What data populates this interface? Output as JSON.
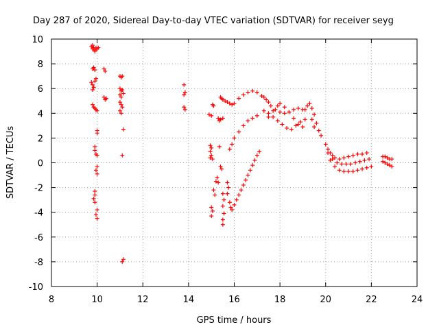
{
  "chart_data": {
    "type": "scatter",
    "title": "Day 287 of 2020, Sidereal Day-to-day VTEC variation (SDTVAR) for receiver seyg",
    "xlabel": "GPS time / hours",
    "ylabel": "SDTVAR / TECUs",
    "xlim": [
      8,
      24
    ],
    "ylim": [
      -10,
      10
    ],
    "xticks": [
      8,
      10,
      12,
      14,
      16,
      18,
      20,
      22,
      24
    ],
    "yticks": [
      -10,
      -8,
      -6,
      -4,
      -2,
      0,
      2,
      4,
      6,
      8,
      10
    ],
    "grid": true,
    "marker": "+",
    "series_color": "#ff0000",
    "points": [
      [
        9.75,
        9.4
      ],
      [
        9.8,
        9.2
      ],
      [
        9.85,
        9.3
      ],
      [
        9.9,
        9.1
      ],
      [
        9.95,
        9.3
      ],
      [
        10.0,
        9.2
      ],
      [
        10.05,
        9.3
      ],
      [
        9.8,
        9.5
      ],
      [
        9.9,
        9.0
      ],
      [
        9.8,
        7.6
      ],
      [
        9.85,
        7.7
      ],
      [
        9.9,
        7.5
      ],
      [
        9.75,
        6.5
      ],
      [
        9.8,
        6.3
      ],
      [
        9.85,
        6.1
      ],
      [
        9.9,
        6.6
      ],
      [
        9.95,
        6.8
      ],
      [
        9.8,
        5.9
      ],
      [
        9.8,
        4.7
      ],
      [
        9.85,
        4.5
      ],
      [
        9.9,
        4.4
      ],
      [
        9.95,
        4.3
      ],
      [
        10.0,
        4.2
      ],
      [
        10.0,
        2.6
      ],
      [
        10.0,
        2.4
      ],
      [
        9.9,
        1.3
      ],
      [
        9.9,
        1.0
      ],
      [
        9.95,
        0.7
      ],
      [
        10.0,
        0.6
      ],
      [
        10.0,
        -0.3
      ],
      [
        9.95,
        -0.6
      ],
      [
        10.0,
        -0.9
      ],
      [
        9.9,
        -2.3
      ],
      [
        9.9,
        -2.6
      ],
      [
        9.85,
        -2.9
      ],
      [
        9.9,
        -3.2
      ],
      [
        10.0,
        -3.8
      ],
      [
        9.95,
        -4.2
      ],
      [
        10.0,
        -4.5
      ],
      [
        10.3,
        7.6
      ],
      [
        10.35,
        7.4
      ],
      [
        10.3,
        5.3
      ],
      [
        10.35,
        5.1
      ],
      [
        10.4,
        5.2
      ],
      [
        11.0,
        7.0
      ],
      [
        11.05,
        6.9
      ],
      [
        11.1,
        7.0
      ],
      [
        11.0,
        6.0
      ],
      [
        11.05,
        5.8
      ],
      [
        11.1,
        5.9
      ],
      [
        11.15,
        5.6
      ],
      [
        11.0,
        5.5
      ],
      [
        11.05,
        5.3
      ],
      [
        11.0,
        4.9
      ],
      [
        11.05,
        4.7
      ],
      [
        11.1,
        4.5
      ],
      [
        11.0,
        4.2
      ],
      [
        11.05,
        4.0
      ],
      [
        11.15,
        2.7
      ],
      [
        11.1,
        0.6
      ],
      [
        11.15,
        -7.8
      ],
      [
        11.1,
        -8.0
      ],
      [
        13.8,
        6.3
      ],
      [
        13.85,
        5.7
      ],
      [
        13.8,
        5.5
      ],
      [
        13.8,
        4.5
      ],
      [
        13.85,
        4.3
      ],
      [
        14.9,
        3.9
      ],
      [
        15.0,
        3.8
      ],
      [
        15.05,
        4.7
      ],
      [
        15.1,
        4.6
      ],
      [
        15.3,
        3.6
      ],
      [
        15.4,
        3.5
      ],
      [
        15.5,
        3.6
      ],
      [
        15.35,
        3.4
      ],
      [
        15.4,
        5.3
      ],
      [
        15.45,
        5.2
      ],
      [
        15.5,
        5.1
      ],
      [
        15.6,
        5.0
      ],
      [
        15.7,
        4.9
      ],
      [
        15.8,
        4.8
      ],
      [
        15.9,
        4.7
      ],
      [
        14.95,
        1.4
      ],
      [
        15.0,
        1.2
      ],
      [
        14.95,
        0.9
      ],
      [
        15.0,
        0.6
      ],
      [
        14.95,
        0.4
      ],
      [
        15.05,
        0.3
      ],
      [
        15.35,
        1.3
      ],
      [
        15.0,
        -3.6
      ],
      [
        15.05,
        -3.9
      ],
      [
        15.0,
        -4.3
      ],
      [
        15.1,
        -2.2
      ],
      [
        15.15,
        -2.6
      ],
      [
        15.2,
        -1.5
      ],
      [
        15.25,
        -1.2
      ],
      [
        15.3,
        -1.6
      ],
      [
        15.4,
        -0.3
      ],
      [
        15.45,
        -0.5
      ],
      [
        15.5,
        -2.5
      ],
      [
        15.55,
        -3.0
      ],
      [
        15.5,
        -3.5
      ],
      [
        15.55,
        -4.1
      ],
      [
        15.5,
        -4.6
      ],
      [
        15.5,
        -5.0
      ],
      [
        15.7,
        -1.6
      ],
      [
        15.75,
        -2.0
      ],
      [
        15.7,
        -2.5
      ],
      [
        15.8,
        -3.2
      ],
      [
        15.85,
        -3.6
      ],
      [
        15.9,
        -3.8
      ],
      [
        15.8,
        1.1
      ],
      [
        15.9,
        1.5
      ],
      [
        16.0,
        2.0
      ],
      [
        16.2,
        2.5
      ],
      [
        16.4,
        3.0
      ],
      [
        16.6,
        3.4
      ],
      [
        16.8,
        3.6
      ],
      [
        17.0,
        3.8
      ],
      [
        16.0,
        4.8
      ],
      [
        16.2,
        5.2
      ],
      [
        16.4,
        5.5
      ],
      [
        16.6,
        5.7
      ],
      [
        16.8,
        5.8
      ],
      [
        17.0,
        5.7
      ],
      [
        16.0,
        -3.4
      ],
      [
        16.1,
        -3.0
      ],
      [
        16.2,
        -2.6
      ],
      [
        16.3,
        -2.2
      ],
      [
        16.4,
        -1.8
      ],
      [
        16.5,
        -1.4
      ],
      [
        16.6,
        -1.0
      ],
      [
        16.7,
        -0.6
      ],
      [
        16.8,
        -0.2
      ],
      [
        16.9,
        0.2
      ],
      [
        17.0,
        0.6
      ],
      [
        17.1,
        0.9
      ],
      [
        17.2,
        5.4
      ],
      [
        17.3,
        5.3
      ],
      [
        17.4,
        5.1
      ],
      [
        17.5,
        4.9
      ],
      [
        17.6,
        4.6
      ],
      [
        17.8,
        4.3
      ],
      [
        18.0,
        4.1
      ],
      [
        18.2,
        4.0
      ],
      [
        18.4,
        4.1
      ],
      [
        18.6,
        4.3
      ],
      [
        18.8,
        4.4
      ],
      [
        19.0,
        4.3
      ],
      [
        17.3,
        4.2
      ],
      [
        17.5,
        4.0
      ],
      [
        17.7,
        3.7
      ],
      [
        17.9,
        3.4
      ],
      [
        18.1,
        3.1
      ],
      [
        18.3,
        2.8
      ],
      [
        18.5,
        2.7
      ],
      [
        18.7,
        3.0
      ],
      [
        18.9,
        3.3
      ],
      [
        19.1,
        3.5
      ],
      [
        17.5,
        3.7
      ],
      [
        17.7,
        4.2
      ],
      [
        17.9,
        4.6
      ],
      [
        18.0,
        4.8
      ],
      [
        18.2,
        4.5
      ],
      [
        18.4,
        4.1
      ],
      [
        18.6,
        3.6
      ],
      [
        18.8,
        3.1
      ],
      [
        19.0,
        2.9
      ],
      [
        19.1,
        4.3
      ],
      [
        19.2,
        4.6
      ],
      [
        19.3,
        4.8
      ],
      [
        19.4,
        4.4
      ],
      [
        19.5,
        3.9
      ],
      [
        19.6,
        3.2
      ],
      [
        19.7,
        2.6
      ],
      [
        19.8,
        2.2
      ],
      [
        19.4,
        3.5
      ],
      [
        19.5,
        2.9
      ],
      [
        20.0,
        1.5
      ],
      [
        20.1,
        1.1
      ],
      [
        20.2,
        0.8
      ],
      [
        20.3,
        0.6
      ],
      [
        20.4,
        0.4
      ],
      [
        20.6,
        0.3
      ],
      [
        20.8,
        0.4
      ],
      [
        21.0,
        0.5
      ],
      [
        21.2,
        0.6
      ],
      [
        21.4,
        0.7
      ],
      [
        21.6,
        0.7
      ],
      [
        21.8,
        0.8
      ],
      [
        20.1,
        0.8
      ],
      [
        20.3,
        0.3
      ],
      [
        20.5,
        0.0
      ],
      [
        20.7,
        -0.1
      ],
      [
        20.9,
        -0.1
      ],
      [
        21.1,
        -0.1
      ],
      [
        21.3,
        0.0
      ],
      [
        21.5,
        0.1
      ],
      [
        21.7,
        0.2
      ],
      [
        21.9,
        0.3
      ],
      [
        20.2,
        0.2
      ],
      [
        20.4,
        -0.3
      ],
      [
        20.6,
        -0.6
      ],
      [
        20.8,
        -0.7
      ],
      [
        21.0,
        -0.7
      ],
      [
        21.2,
        -0.7
      ],
      [
        21.4,
        -0.6
      ],
      [
        21.6,
        -0.5
      ],
      [
        21.8,
        -0.4
      ],
      [
        22.0,
        -0.3
      ],
      [
        22.5,
        0.5
      ],
      [
        22.6,
        0.5
      ],
      [
        22.7,
        0.4
      ],
      [
        22.8,
        0.3
      ],
      [
        22.9,
        0.3
      ],
      [
        22.5,
        0.1
      ],
      [
        22.6,
        0.0
      ],
      [
        22.7,
        -0.1
      ],
      [
        22.8,
        -0.2
      ],
      [
        22.9,
        -0.3
      ]
    ]
  }
}
